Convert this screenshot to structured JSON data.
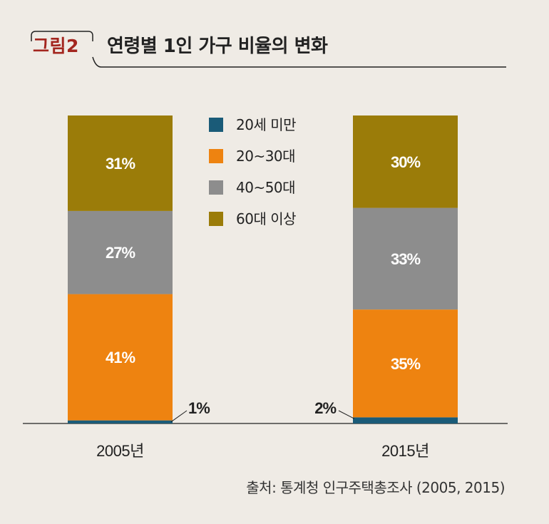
{
  "header": {
    "figure_label": "그림2",
    "title": "연령별 1인 가구 비율의 변화"
  },
  "source": "출처: 통계청 인구주택총조사 (2005, 2015)",
  "colors": {
    "under20": "#1a5b78",
    "age20_30": "#ee8310",
    "age40_50": "#8d8d8d",
    "age60plus": "#9b7c09",
    "label_accent": "#a3261f"
  },
  "chart_data": {
    "type": "bar",
    "stacked": true,
    "categories": [
      "2005년",
      "2015년"
    ],
    "series": [
      {
        "name": "20세 미만",
        "values": [
          1,
          2
        ],
        "labels": [
          "1%",
          "2%"
        ]
      },
      {
        "name": "20~30대",
        "values": [
          41,
          35
        ],
        "labels": [
          "41%",
          "35%"
        ]
      },
      {
        "name": "40~50대",
        "values": [
          27,
          33
        ],
        "labels": [
          "27%",
          "33%"
        ]
      },
      {
        "name": "60대 이상",
        "values": [
          31,
          30
        ],
        "labels": [
          "31%",
          "30%"
        ]
      }
    ],
    "title": "연령별 1인 가구 비율의 변화",
    "xlabel": "",
    "ylabel": "",
    "ylim": [
      0,
      100
    ],
    "grid": false,
    "legend_position": "top-center"
  }
}
